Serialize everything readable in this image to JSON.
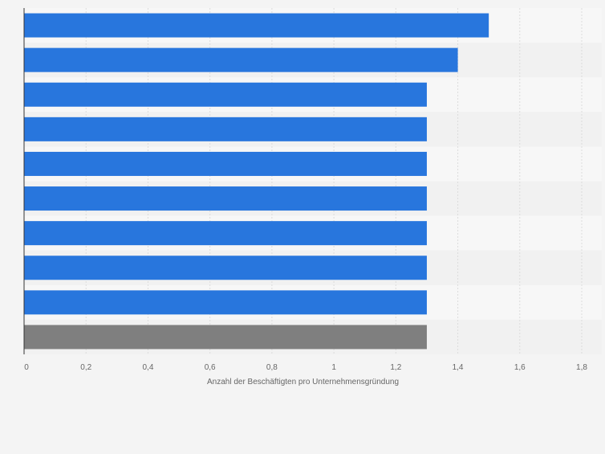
{
  "chart_data": {
    "type": "bar",
    "orientation": "horizontal",
    "title": "",
    "xlabel": "Anzahl der Beschäftigten pro Unternehmensgründung",
    "ylabel": "",
    "categories": [
      "",
      "",
      "",
      "",
      "",
      "",
      "",
      "",
      "",
      ""
    ],
    "values": [
      1.5,
      1.4,
      1.3,
      1.3,
      1.3,
      1.3,
      1.3,
      1.3,
      1.3,
      1.3
    ],
    "xlim": [
      0,
      1.8
    ],
    "xticks": [
      0,
      0.2,
      0.4,
      0.6,
      0.8,
      1,
      1.2,
      1.4,
      1.6,
      1.8
    ],
    "xtick_labels": [
      "0",
      "0,2",
      "0,4",
      "0,6",
      "0,8",
      "1",
      "1,2",
      "1,4",
      "1,6",
      "1,8"
    ],
    "grid": true,
    "colors": {
      "bar": "#2876dd",
      "highlight_bar": "#7f7f7f",
      "band_light": "#f7f7f7",
      "band_dark": "#f1f1f1",
      "page_background": "#f4f4f4",
      "axis_text": "#666666"
    },
    "highlight_index": 9
  }
}
